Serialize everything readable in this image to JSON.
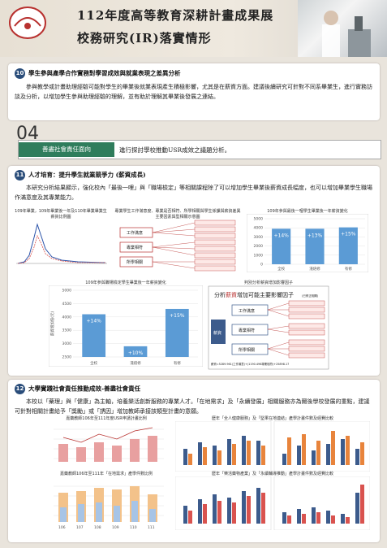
{
  "header": {
    "logo_text": "嘉 藥 大 南",
    "title_line1": "112年度高等教育深耕計畫成果展",
    "title_line2": "校務研究(IR)落實情形"
  },
  "section10": {
    "num": "10",
    "heading": "學生參與產學合作實務對學習成效與就業表現之差異分析",
    "body": "參與教學或計畫助理經驗可能對學生的畢業後就業表現產生積極影響，尤其是在薪資方面。建議後續研究可針對不同系畢業生，進行實務訪談及分析，以增加學生參與助理經驗的理解，並有助於理解其畢業後發展之連結。"
  },
  "badge04": {
    "num": "04",
    "label": "善盡社會責任面向",
    "text": "進行探討學校推動USR成效之議題分析。"
  },
  "section11": {
    "num": "11",
    "heading": "人才培育：提升學生就業競爭力 (薪資成長)",
    "body": "本研究分析結果顯示，強化校內「最後一哩」與「職場檢定」等相關課程除了可以增加學生畢業後薪資成長幅度，也可以增加畢業學生職場作滿意度及其專業能力。",
    "chart1_title": "109年畢業，109年畢業後一年及110年畢業畢業生薪資比例圖",
    "chart2_title": "專業學生工作滿意度、專業是否相符、所學相關與學生係課與薪資差異主要因素與型相關示意圖",
    "chart3_title": "109年參與最後一哩學生畢業後一年薪資變化",
    "chart4_title": "109年參與職場檢定學生畢業後一年薪資變化",
    "chart5_title": "判別分析薪資增加影響因子",
    "factor_items": [
      "工作滿意",
      "專業相符",
      "所學相關"
    ],
    "factor_title_a": "分析",
    "factor_title_b": "薪資",
    "factor_title_c": "增加可能主要影響因子",
    "factor_note": "(已修正相關)",
    "factor_center": "薪資",
    "factor_formula": "薪資=5289.961(工作滿意)+(1190.496專業相符)+25898.17"
  },
  "chart_data": [
    {
      "type": "bar",
      "title": "109年參與最後一哩學生畢業後一年薪資變化",
      "categories": [
        "全校",
        "淺焙修",
        "有修"
      ],
      "values": [
        3900,
        3900,
        4050
      ],
      "labels": [
        "+14%",
        "+13%",
        "+15%"
      ],
      "ylim": [
        0,
        5000
      ],
      "yticks": [
        0,
        1000,
        2000,
        3000,
        4000,
        5000
      ]
    },
    {
      "type": "bar",
      "title": "109年參與職場檢定學生畢業後一年薪資變化",
      "categories": [
        "全校",
        "淺焙修",
        "有修"
      ],
      "values": [
        4100,
        2900,
        4300
      ],
      "labels": [
        "+14%",
        "+10%",
        "+15%"
      ],
      "ylim": [
        2500,
        5000
      ],
      "yticks": [
        2500,
        3000,
        3500,
        4000,
        4500,
        5000
      ],
      "ylabel": "薪資增加值(元)"
    }
  ],
  "section12": {
    "num": "12",
    "heading": "大學實踐社會責任推動成效-善盡社會責任",
    "body": "本校以「藥理」與「健康」為主軸，培養樂活創新服務的專業人才。「在地需求」及「永續發展」相關服務亦為爾後學校發展的重點，建議可針對相關計畫給予「獎勵」或「誘因」增加教師承接該類型計畫的意願。",
    "chart6_title": "嘉藥教師106年至111年度USR申請計畫比例",
    "chart7_title": "歷年「全人健康服務」及「堅果在地連結」產學計畫件數及經費比較",
    "chart8_title": "嘉藥教師106年至111年「在地需求」產學件數比例",
    "chart9_title": "歷年「樂活藥物產業」及「永續輔導推動」產學計畫件數及經費比較",
    "years": [
      "106",
      "107",
      "108",
      "109",
      "110",
      "111"
    ]
  }
}
